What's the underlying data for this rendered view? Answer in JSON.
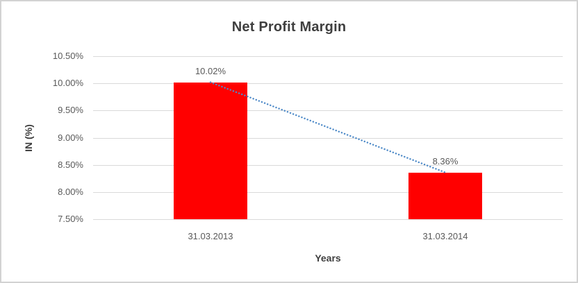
{
  "chart_data": {
    "type": "bar",
    "title": "Net Profit Margin",
    "categories": [
      "31.03.2013",
      "31.03.2014"
    ],
    "series": [
      {
        "name": "Net Profit Margin",
        "values": [
          10.02,
          8.36
        ]
      }
    ],
    "data_labels": [
      "10.02%",
      "8.36%"
    ],
    "xlabel": "Years",
    "ylabel": "IN (%)",
    "ylim": [
      7.5,
      10.5
    ],
    "yticks": [
      {
        "value": 10.5,
        "label": "10.50%"
      },
      {
        "value": 10.0,
        "label": "10.00%"
      },
      {
        "value": 9.5,
        "label": "9.50%"
      },
      {
        "value": 9.0,
        "label": "9.00%"
      },
      {
        "value": 8.5,
        "label": "8.50%"
      },
      {
        "value": 8.0,
        "label": "8.00%"
      },
      {
        "value": 7.5,
        "label": "7.50%"
      }
    ],
    "grid": true,
    "legend": "none",
    "bar_color": "#ff0000",
    "trendline": {
      "type": "linear",
      "style": "dotted",
      "color": "#4e8ac8",
      "from_value": 10.02,
      "to_value": 8.36
    }
  }
}
